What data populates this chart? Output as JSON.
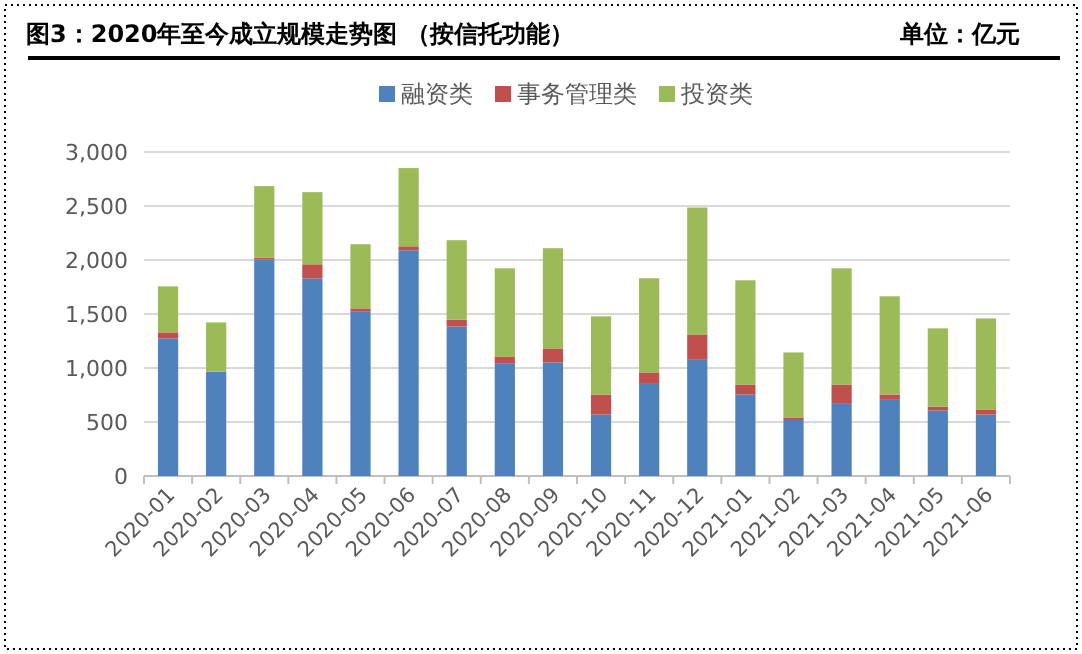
{
  "chart_data": {
    "type": "bar",
    "title": "图3：2020年至今成立规模走势图 （按信托功能）",
    "subtitle": "单位：亿元",
    "categories": [
      "2020-01",
      "2020-02",
      "2020-03",
      "2020-04",
      "2020-05",
      "2020-06",
      "2020-07",
      "2020-08",
      "2020-09",
      "2020-10",
      "2020-11",
      "2020-12",
      "2021-01",
      "2021-02",
      "2021-03",
      "2021-04",
      "2021-05",
      "2021-06"
    ],
    "stacked": true,
    "series": [
      {
        "name": "融资类",
        "color": "#4f81bd",
        "values": [
          1274,
          965,
          2004,
          1830,
          1521,
          2090,
          1385,
          1039,
          1051,
          569,
          853,
          1076,
          754,
          519,
          668,
          705,
          606,
          569
        ]
      },
      {
        "name": "事务管理类",
        "color": "#c0504d",
        "values": [
          56,
          0,
          18,
          130,
          31,
          37,
          62,
          68,
          130,
          185,
          106,
          235,
          93,
          19,
          179,
          49,
          37,
          43
        ]
      },
      {
        "name": "投资类",
        "color": "#9bbb59",
        "values": [
          426,
          457,
          662,
          668,
          594,
          724,
          736,
          816,
          928,
          724,
          872,
          1175,
          965,
          606,
          1076,
          910,
          724,
          847
        ]
      }
    ],
    "ylim": [
      0,
      3000
    ],
    "yticks": [
      0,
      500,
      {
        "value": 1000,
        "label": "1,000"
      },
      {
        "value": 1500,
        "label": "1,500"
      },
      {
        "value": 2000,
        "label": "2,000"
      },
      {
        "value": 2500,
        "label": "2,500"
      },
      {
        "value": 3000,
        "label": "3,000"
      }
    ],
    "grid": "y",
    "legend": "top"
  }
}
